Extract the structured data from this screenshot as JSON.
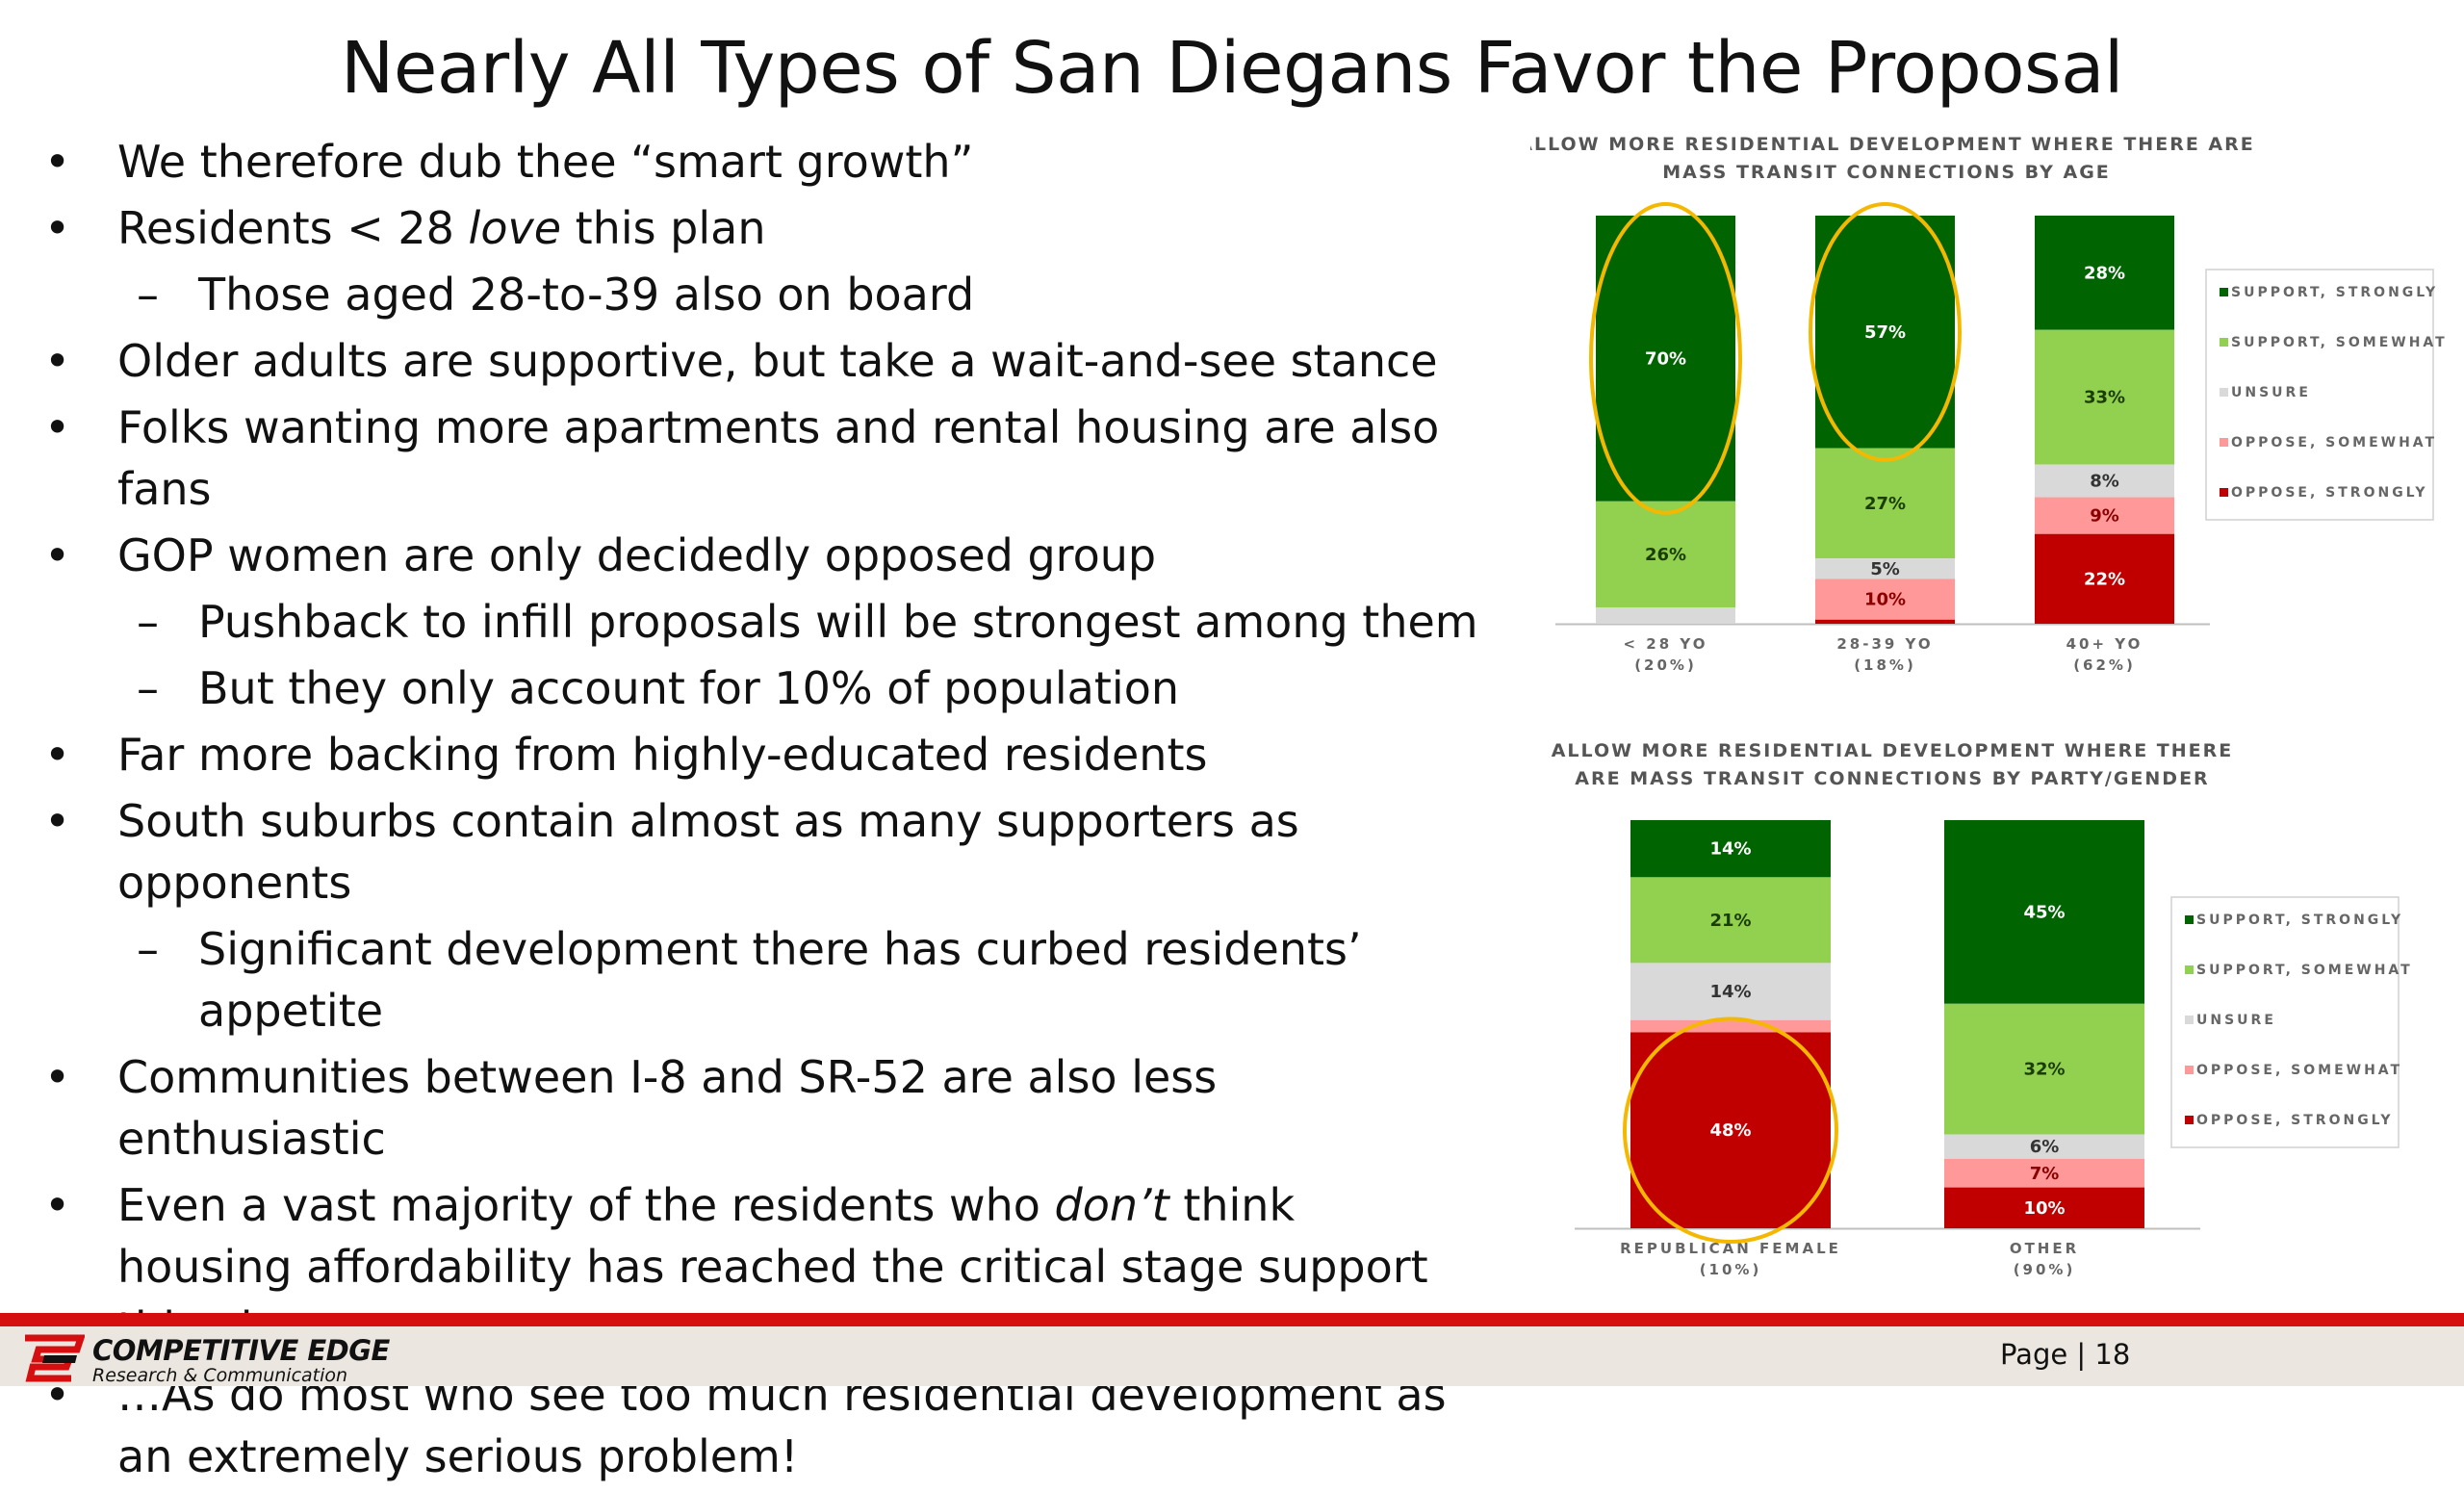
{
  "slide": {
    "title": "Nearly All Types of San Diegans Favor the Proposal",
    "page_label": "Page | 18"
  },
  "bullets": [
    {
      "level": 1,
      "mark": "•",
      "parts": [
        {
          "t": "We therefore dub thee “smart growth”"
        }
      ]
    },
    {
      "level": 1,
      "mark": "•",
      "parts": [
        {
          "t": "Residents < 28 "
        },
        {
          "t": "love",
          "i": true
        },
        {
          "t": " this plan"
        }
      ]
    },
    {
      "level": 2,
      "mark": "–",
      "parts": [
        {
          "t": "Those aged 28-to-39 also on board"
        }
      ]
    },
    {
      "level": 1,
      "mark": "•",
      "parts": [
        {
          "t": "Older adults are supportive, but take a wait-and-see stance"
        }
      ]
    },
    {
      "level": 1,
      "mark": "•",
      "parts": [
        {
          "t": "Folks wanting more apartments and rental housing are also fans"
        }
      ]
    },
    {
      "level": 1,
      "mark": "•",
      "parts": [
        {
          "t": "GOP women are only decidedly opposed group"
        }
      ]
    },
    {
      "level": 2,
      "mark": "–",
      "parts": [
        {
          "t": "Pushback to infill proposals will be strongest among them"
        }
      ]
    },
    {
      "level": 2,
      "mark": "–",
      "parts": [
        {
          "t": "But they only account for 10% of population"
        }
      ]
    },
    {
      "level": 1,
      "mark": "•",
      "parts": [
        {
          "t": "Far more backing from highly-educated residents"
        }
      ]
    },
    {
      "level": 1,
      "mark": "•",
      "parts": [
        {
          "t": "South suburbs contain almost as many supporters as opponents"
        }
      ]
    },
    {
      "level": 2,
      "mark": "–",
      "parts": [
        {
          "t": "Significant development there has curbed residents’ appetite"
        }
      ]
    },
    {
      "level": 1,
      "mark": "•",
      "parts": [
        {
          "t": "Communities between I-8 and SR-52 are also less enthusiastic"
        }
      ]
    },
    {
      "level": 1,
      "mark": "•",
      "parts": [
        {
          "t": "Even a vast majority of the residents who "
        },
        {
          "t": "don’t",
          "i": true
        },
        {
          "t": " think housing affordability has reached the critical stage support this plan…"
        }
      ]
    },
    {
      "level": 1,
      "mark": "•",
      "parts": [
        {
          "t": "…As do most who see too much residential development as an extremely serious problem!"
        }
      ]
    }
  ],
  "colors": {
    "support_strongly": "#006400",
    "support_somewhat": "#92d050",
    "unsure": "#d9d9d9",
    "oppose_somewhat": "#ff9999",
    "oppose_strongly": "#c00000",
    "highlight_ring": "#f5b800",
    "footer_red": "#d50f0f"
  },
  "chart_data": [
    {
      "type": "bar",
      "stacked": true,
      "title_lines": [
        "ALLOW MORE RESIDENTIAL DEVELOPMENT WHERE THERE ARE",
        "MASS TRANSIT CONNECTIONS BY AGE"
      ],
      "categories": [
        "< 28 YO",
        "28-39 YO",
        "40+ YO"
      ],
      "category_shares": [
        "(20%)",
        "(18%)",
        "(62%)"
      ],
      "series": [
        {
          "name": "SUPPORT, STRONGLY",
          "values": [
            70,
            57,
            28
          ],
          "labels": [
            "70%",
            "57%",
            "28%"
          ]
        },
        {
          "name": "SUPPORT, SOMEWHAT",
          "values": [
            26,
            27,
            33
          ],
          "labels": [
            "26%",
            "27%",
            "33%"
          ]
        },
        {
          "name": "UNSURE",
          "values": [
            4,
            5,
            8
          ],
          "labels": [
            "",
            "5%",
            "8%"
          ]
        },
        {
          "name": "OPPOSE, SOMEWHAT",
          "values": [
            0,
            10,
            9
          ],
          "labels": [
            "",
            "10%",
            "9%"
          ]
        },
        {
          "name": "OPPOSE, STRONGLY",
          "values": [
            0,
            1,
            22
          ],
          "labels": [
            "",
            "",
            "22%"
          ]
        }
      ],
      "highlighted_categories": [
        "< 28 YO",
        "28-39 YO"
      ],
      "highlighted_series": [
        "SUPPORT, STRONGLY"
      ],
      "legend": "right",
      "ylim": [
        0,
        100
      ],
      "grid": false
    },
    {
      "type": "bar",
      "stacked": true,
      "title_lines": [
        "ALLOW MORE RESIDENTIAL DEVELOPMENT WHERE THERE",
        "ARE MASS TRANSIT CONNECTIONS BY PARTY/GENDER"
      ],
      "categories": [
        "REPUBLICAN FEMALE",
        "OTHER"
      ],
      "category_shares": [
        "(10%)",
        "(90%)"
      ],
      "series": [
        {
          "name": "SUPPORT, STRONGLY",
          "values": [
            14,
            45
          ],
          "labels": [
            "14%",
            "45%"
          ]
        },
        {
          "name": "SUPPORT, SOMEWHAT",
          "values": [
            21,
            32
          ],
          "labels": [
            "21%",
            "32%"
          ]
        },
        {
          "name": "UNSURE",
          "values": [
            14,
            6
          ],
          "labels": [
            "14%",
            "6%"
          ]
        },
        {
          "name": "OPPOSE, SOMEWHAT",
          "values": [
            3,
            7
          ],
          "labels": [
            "",
            "7%"
          ]
        },
        {
          "name": "OPPOSE, STRONGLY",
          "values": [
            48,
            10
          ],
          "labels": [
            "48%",
            "10%"
          ]
        }
      ],
      "highlighted_categories": [
        "REPUBLICAN FEMALE"
      ],
      "highlighted_series": [
        "OPPOSE, STRONGLY"
      ],
      "legend": "right",
      "ylim": [
        0,
        100
      ],
      "grid": false
    }
  ],
  "footer": {
    "logo_name": "COMPETITIVE EDGE",
    "logo_sub": "Research & Communication"
  }
}
